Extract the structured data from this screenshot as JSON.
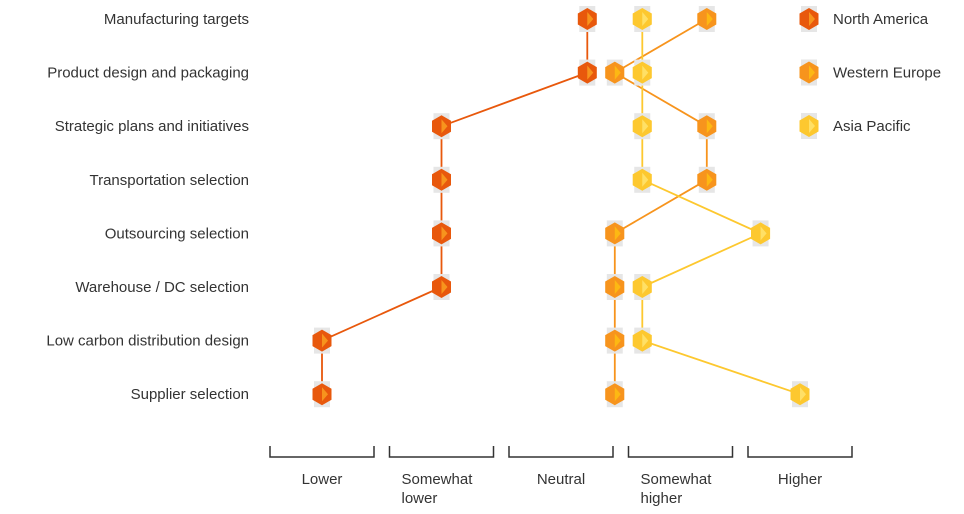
{
  "chart_data": {
    "type": "scatter",
    "title": "",
    "xlabel": "",
    "ylabel": "",
    "categories": [
      "Manufacturing targets",
      "Product design and packaging",
      "Strategic plans and initiatives",
      "Transportation selection",
      "Outsourcing selection",
      "Warehouse / DC selection",
      "Low carbon distribution design",
      "Supplier selection"
    ],
    "scale_labels": [
      "Lower",
      "Somewhat\nlower",
      "Neutral",
      "Somewhat\nhigher",
      "Higher"
    ],
    "xlim": [
      1,
      5
    ],
    "series": [
      {
        "name": "North America",
        "color": "#E8580C",
        "accent": "#F7941D",
        "values": [
          3.22,
          3.22,
          2.0,
          2.0,
          2.0,
          2.0,
          1.0,
          1.0
        ]
      },
      {
        "name": "Western Europe",
        "color": "#F7941D",
        "accent": "#FDB813",
        "values": [
          4.22,
          3.45,
          4.22,
          4.22,
          3.45,
          3.45,
          3.45,
          3.45
        ]
      },
      {
        "name": "Asia Pacific",
        "color": "#FDC82F",
        "accent": "#FFE066",
        "values": [
          3.68,
          3.68,
          3.68,
          3.68,
          4.67,
          3.68,
          3.68,
          5.0
        ]
      }
    ],
    "legend_position": "top-right",
    "grid": false
  }
}
